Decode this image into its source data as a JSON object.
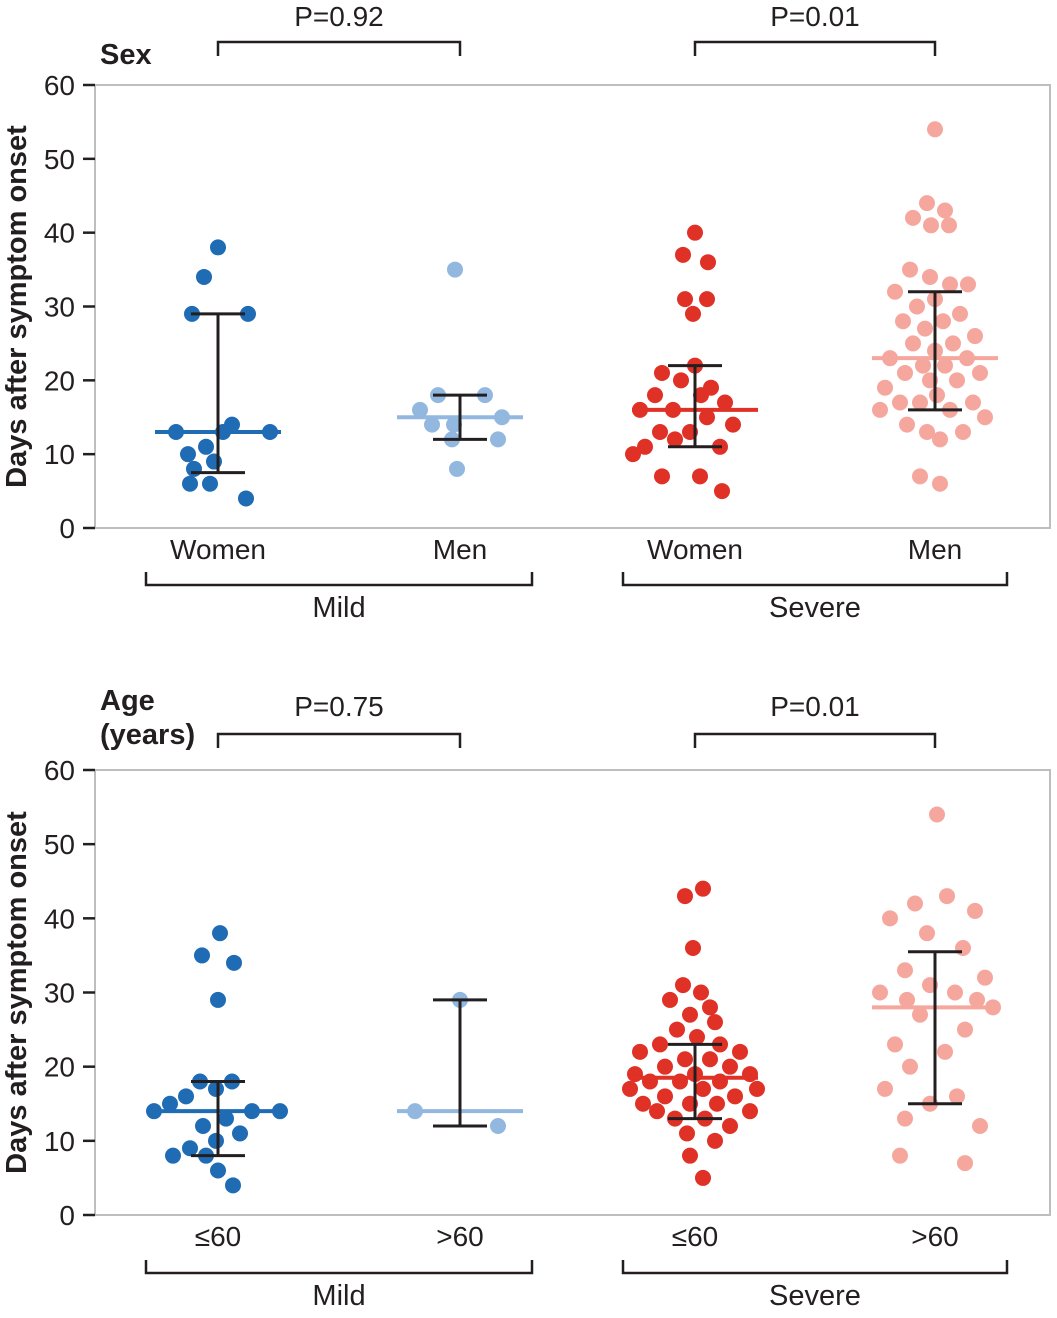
{
  "figure": {
    "background": "#ffffff",
    "ink_color": "#231f20",
    "frame_color": "#bcbec0"
  },
  "chart_data": [
    {
      "type": "scatter",
      "panel_label": [
        "Sex"
      ],
      "ylabel": "Days after symptom onset",
      "ylim": [
        0,
        60
      ],
      "yticks": [
        0,
        10,
        20,
        30,
        40,
        50,
        60
      ],
      "legend": "none",
      "grid": false,
      "comparisons": [
        {
          "label": "P=0.92",
          "from": 0,
          "to": 1
        },
        {
          "label": "P=0.01",
          "from": 2,
          "to": 3
        }
      ],
      "condition_brackets": [
        {
          "label": "Mild",
          "from": 0,
          "to": 1
        },
        {
          "label": "Severe",
          "from": 2,
          "to": 3
        }
      ],
      "groups": [
        {
          "label": "Women",
          "condition": "Mild",
          "color": "#1f6cb5",
          "median": 13,
          "whisker_low": 7.5,
          "whisker_high": 29,
          "points": [
            [
              38,
              0
            ],
            [
              34,
              -14
            ],
            [
              29,
              -26
            ],
            [
              29,
              30
            ],
            [
              14,
              14
            ],
            [
              13,
              -42
            ],
            [
              13,
              5
            ],
            [
              13,
              52
            ],
            [
              11,
              -12
            ],
            [
              10,
              -30
            ],
            [
              9,
              -4
            ],
            [
              8,
              -24
            ],
            [
              6,
              -28
            ],
            [
              6,
              -8
            ],
            [
              4,
              28
            ]
          ]
        },
        {
          "label": "Men",
          "condition": "Mild",
          "color": "#93b8e0",
          "median": 15,
          "whisker_low": 12,
          "whisker_high": 18,
          "points": [
            [
              35,
              -5
            ],
            [
              18,
              -22
            ],
            [
              18,
              25
            ],
            [
              16,
              -40
            ],
            [
              15,
              42
            ],
            [
              14,
              -28
            ],
            [
              14,
              -6
            ],
            [
              12,
              -8
            ],
            [
              12,
              38
            ],
            [
              8,
              -3
            ]
          ]
        },
        {
          "label": "Women",
          "condition": "Severe",
          "color": "#e03127",
          "median": 16,
          "whisker_low": 11,
          "whisker_high": 22,
          "points": [
            [
              40,
              0
            ],
            [
              37,
              -12
            ],
            [
              36,
              13
            ],
            [
              31,
              -10
            ],
            [
              31,
              12
            ],
            [
              29,
              -2
            ],
            [
              22,
              0
            ],
            [
              21,
              -33
            ],
            [
              20,
              -14
            ],
            [
              19,
              16
            ],
            [
              18,
              -40
            ],
            [
              18,
              6
            ],
            [
              17,
              30
            ],
            [
              16,
              -55
            ],
            [
              16,
              -22
            ],
            [
              15,
              12
            ],
            [
              14,
              38
            ],
            [
              13,
              -35
            ],
            [
              13,
              -5
            ],
            [
              12,
              -20
            ],
            [
              11,
              -50
            ],
            [
              11,
              25
            ],
            [
              10,
              -62
            ],
            [
              7,
              -33
            ],
            [
              7,
              5
            ],
            [
              5,
              27
            ]
          ]
        },
        {
          "label": "Men",
          "condition": "Severe",
          "color": "#f5a79e",
          "median": 23,
          "whisker_low": 16,
          "whisker_high": 32,
          "points": [
            [
              54,
              0
            ],
            [
              44,
              -8
            ],
            [
              43,
              10
            ],
            [
              42,
              -22
            ],
            [
              41,
              -4
            ],
            [
              41,
              14
            ],
            [
              35,
              -25
            ],
            [
              34,
              -5
            ],
            [
              33,
              15
            ],
            [
              33,
              33
            ],
            [
              32,
              -40
            ],
            [
              31,
              0
            ],
            [
              30,
              -18
            ],
            [
              29,
              25
            ],
            [
              28,
              -32
            ],
            [
              28,
              8
            ],
            [
              27,
              -10
            ],
            [
              26,
              40
            ],
            [
              25,
              -22
            ],
            [
              25,
              18
            ],
            [
              24,
              0
            ],
            [
              23,
              -45
            ],
            [
              23,
              32
            ],
            [
              22,
              -12
            ],
            [
              22,
              10
            ],
            [
              21,
              -30
            ],
            [
              21,
              45
            ],
            [
              20,
              -5
            ],
            [
              20,
              22
            ],
            [
              19,
              -50
            ],
            [
              18,
              2
            ],
            [
              17,
              -35
            ],
            [
              17,
              -15
            ],
            [
              17,
              38
            ],
            [
              16,
              -55
            ],
            [
              16,
              15
            ],
            [
              15,
              50
            ],
            [
              14,
              -28
            ],
            [
              13,
              -8
            ],
            [
              13,
              28
            ],
            [
              12,
              5
            ],
            [
              7,
              -15
            ],
            [
              6,
              5
            ]
          ]
        }
      ]
    },
    {
      "type": "scatter",
      "panel_label": [
        "Age",
        "(years)"
      ],
      "ylabel": "Days after symptom onset",
      "ylim": [
        0,
        60
      ],
      "yticks": [
        0,
        10,
        20,
        30,
        40,
        50,
        60
      ],
      "legend": "none",
      "grid": false,
      "comparisons": [
        {
          "label": "P=0.75",
          "from": 0,
          "to": 1
        },
        {
          "label": "P=0.01",
          "from": 2,
          "to": 3
        }
      ],
      "condition_brackets": [
        {
          "label": "Mild",
          "from": 0,
          "to": 1
        },
        {
          "label": "Severe",
          "from": 2,
          "to": 3
        }
      ],
      "groups": [
        {
          "label": "≤60",
          "condition": "Mild",
          "color": "#1f6cb5",
          "median": 14,
          "whisker_low": 8,
          "whisker_high": 18,
          "points": [
            [
              38,
              2
            ],
            [
              35,
              -16
            ],
            [
              34,
              16
            ],
            [
              29,
              0
            ],
            [
              18,
              -18
            ],
            [
              18,
              14
            ],
            [
              17,
              -2
            ],
            [
              16,
              -32
            ],
            [
              15,
              -48
            ],
            [
              14,
              -64
            ],
            [
              14,
              62
            ],
            [
              14,
              34
            ],
            [
              13,
              8
            ],
            [
              12,
              -15
            ],
            [
              11,
              22
            ],
            [
              10,
              -2
            ],
            [
              9,
              -28
            ],
            [
              8,
              -45
            ],
            [
              8,
              -12
            ],
            [
              6,
              0
            ],
            [
              4,
              15
            ]
          ]
        },
        {
          "label": ">60",
          "condition": "Mild",
          "color": "#93b8e0",
          "median": 14,
          "whisker_low": 12,
          "whisker_high": 29,
          "points": [
            [
              29,
              0
            ],
            [
              14,
              -45
            ],
            [
              12,
              38
            ]
          ]
        },
        {
          "label": "≤60",
          "condition": "Severe",
          "color": "#e03127",
          "median": 18.5,
          "whisker_low": 13,
          "whisker_high": 23,
          "points": [
            [
              44,
              8
            ],
            [
              43,
              -10
            ],
            [
              36,
              -2
            ],
            [
              31,
              -12
            ],
            [
              30,
              6
            ],
            [
              29,
              -25
            ],
            [
              28,
              15
            ],
            [
              27,
              -5
            ],
            [
              26,
              20
            ],
            [
              25,
              -18
            ],
            [
              24,
              2
            ],
            [
              23,
              -35
            ],
            [
              23,
              25
            ],
            [
              22,
              -55
            ],
            [
              22,
              45
            ],
            [
              21,
              -10
            ],
            [
              21,
              15
            ],
            [
              20,
              -30
            ],
            [
              20,
              35
            ],
            [
              19,
              -60
            ],
            [
              19,
              0
            ],
            [
              19,
              55
            ],
            [
              18,
              -45
            ],
            [
              18,
              -15
            ],
            [
              18,
              25
            ],
            [
              17,
              -65
            ],
            [
              17,
              8
            ],
            [
              17,
              62
            ],
            [
              16,
              -30
            ],
            [
              16,
              40
            ],
            [
              15,
              -52
            ],
            [
              15,
              -5
            ],
            [
              15,
              22
            ],
            [
              14,
              -38
            ],
            [
              14,
              55
            ],
            [
              13,
              -20
            ],
            [
              13,
              10
            ],
            [
              12,
              35
            ],
            [
              11,
              -8
            ],
            [
              10,
              20
            ],
            [
              8,
              -5
            ],
            [
              5,
              8
            ]
          ]
        },
        {
          "label": ">60",
          "condition": "Severe",
          "color": "#f5a79e",
          "median": 28,
          "whisker_low": 15,
          "whisker_high": 35.5,
          "points": [
            [
              54,
              2
            ],
            [
              43,
              12
            ],
            [
              42,
              -20
            ],
            [
              41,
              40
            ],
            [
              40,
              -45
            ],
            [
              38,
              -8
            ],
            [
              36,
              28
            ],
            [
              33,
              -30
            ],
            [
              32,
              50
            ],
            [
              31,
              -5
            ],
            [
              30,
              -55
            ],
            [
              30,
              20
            ],
            [
              29,
              -28
            ],
            [
              29,
              42
            ],
            [
              28,
              58
            ],
            [
              27,
              -15
            ],
            [
              25,
              30
            ],
            [
              23,
              -40
            ],
            [
              22,
              10
            ],
            [
              20,
              -25
            ],
            [
              17,
              -50
            ],
            [
              16,
              22
            ],
            [
              15,
              -5
            ],
            [
              13,
              -30
            ],
            [
              12,
              45
            ],
            [
              8,
              -35
            ],
            [
              7,
              30
            ]
          ]
        }
      ]
    }
  ]
}
